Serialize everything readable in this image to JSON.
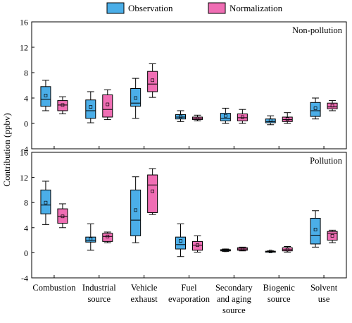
{
  "chart_data": {
    "type": "box",
    "legend": {
      "placement": "top",
      "items": [
        {
          "label": "Observation",
          "color": "#4BAEE8"
        },
        {
          "label": "Normalization",
          "color": "#F06EB4"
        }
      ]
    },
    "ylabel": "Contribution (ppbv)",
    "ylim": [
      -4,
      16
    ],
    "yticks": [
      "-4",
      "0",
      "4",
      "8",
      "12",
      "16"
    ],
    "categories": [
      [
        "Combustion"
      ],
      [
        "Industrial",
        "source"
      ],
      [
        "Vehicle",
        "exhaust"
      ],
      [
        "Fuel",
        "evaporation"
      ],
      [
        "Secondary",
        "and aging",
        "source"
      ],
      [
        "Biogenic",
        "source"
      ],
      [
        "Solvent",
        "use"
      ]
    ],
    "panels": [
      {
        "title": "Non-pollution",
        "series": [
          {
            "name": "Observation",
            "boxes": [
              {
                "min": 2.0,
                "q1": 2.7,
                "median": 3.8,
                "q3": 5.8,
                "max": 6.8,
                "mean": 4.4
              },
              {
                "min": 0.1,
                "q1": 0.8,
                "median": 2.0,
                "q3": 3.7,
                "max": 5.0,
                "mean": 2.6
              },
              {
                "min": 0.8,
                "q1": 2.7,
                "median": 3.2,
                "q3": 5.5,
                "max": 7.1,
                "mean": 4.0
              },
              {
                "min": 0.3,
                "q1": 0.7,
                "median": 1.0,
                "q3": 1.4,
                "max": 2.0,
                "mean": 1.1
              },
              {
                "min": 0.0,
                "q1": 0.4,
                "median": 0.8,
                "q3": 1.6,
                "max": 2.4,
                "mean": 1.2
              },
              {
                "min": -0.2,
                "q1": 0.1,
                "median": 0.3,
                "q3": 0.7,
                "max": 1.2,
                "mean": 0.5
              },
              {
                "min": 0.7,
                "q1": 1.1,
                "median": 2.0,
                "q3": 3.3,
                "max": 4.0,
                "mean": 2.4
              }
            ]
          },
          {
            "name": "Normalization",
            "boxes": [
              {
                "min": 1.5,
                "q1": 2.0,
                "median": 2.9,
                "q3": 3.6,
                "max": 4.2,
                "mean": 2.9
              },
              {
                "min": 0.6,
                "q1": 1.0,
                "median": 2.2,
                "q3": 4.5,
                "max": 5.3,
                "mean": 3.0
              },
              {
                "min": 4.1,
                "q1": 5.0,
                "median": 6.2,
                "q3": 8.2,
                "max": 9.4,
                "mean": 6.8
              },
              {
                "min": 0.4,
                "q1": 0.6,
                "median": 0.8,
                "q3": 1.0,
                "max": 1.3,
                "mean": 0.8
              },
              {
                "min": 0.0,
                "q1": 0.4,
                "median": 0.9,
                "q3": 1.5,
                "max": 2.2,
                "mean": 1.0
              },
              {
                "min": 0.0,
                "q1": 0.3,
                "median": 0.6,
                "q3": 1.0,
                "max": 1.7,
                "mean": 0.7
              },
              {
                "min": 2.0,
                "q1": 2.3,
                "median": 2.6,
                "q3": 3.2,
                "max": 3.6,
                "mean": 2.8
              }
            ]
          }
        ]
      },
      {
        "title": "Pollution",
        "series": [
          {
            "name": "Observation",
            "boxes": [
              {
                "min": 4.5,
                "q1": 6.2,
                "median": 7.6,
                "q3": 10.0,
                "max": 11.4,
                "mean": 8.0
              },
              {
                "min": 0.4,
                "q1": 1.7,
                "median": 2.0,
                "q3": 2.5,
                "max": 4.6,
                "mean": 2.2
              },
              {
                "min": 1.6,
                "q1": 2.7,
                "median": 5.2,
                "q3": 10.0,
                "max": 12.1,
                "mean": 6.8
              },
              {
                "min": -0.6,
                "q1": 0.6,
                "median": 1.3,
                "q3": 2.5,
                "max": 4.6,
                "mean": 1.9
              },
              {
                "min": 0.2,
                "q1": 0.3,
                "median": 0.4,
                "q3": 0.5,
                "max": 0.6,
                "mean": 0.4
              },
              {
                "min": 0.1,
                "q1": 0.15,
                "median": 0.2,
                "q3": 0.25,
                "max": 0.3,
                "mean": 0.2
              },
              {
                "min": 0.9,
                "q1": 1.4,
                "median": 2.8,
                "q3": 5.5,
                "max": 6.7,
                "mean": 3.7
              }
            ]
          },
          {
            "name": "Normalization",
            "boxes": [
              {
                "min": 4.0,
                "q1": 4.7,
                "median": 5.8,
                "q3": 7.0,
                "max": 7.8,
                "mean": 5.8
              },
              {
                "min": 1.6,
                "q1": 1.8,
                "median": 2.6,
                "q3": 3.1,
                "max": 3.3,
                "mean": 2.6
              },
              {
                "min": 6.1,
                "q1": 6.4,
                "median": 10.8,
                "q3": 12.4,
                "max": 13.4,
                "mean": 9.8
              },
              {
                "min": 0.1,
                "q1": 0.4,
                "median": 1.2,
                "q3": 1.8,
                "max": 2.7,
                "mean": 1.2
              },
              {
                "min": 0.3,
                "q1": 0.4,
                "median": 0.6,
                "q3": 0.8,
                "max": 0.9,
                "mean": 0.6
              },
              {
                "min": 0.1,
                "q1": 0.3,
                "median": 0.5,
                "q3": 0.8,
                "max": 1.0,
                "mean": 0.5
              },
              {
                "min": 1.6,
                "q1": 2.0,
                "median": 3.1,
                "q3": 3.4,
                "max": 3.6,
                "mean": 2.7
              }
            ]
          }
        ]
      }
    ]
  }
}
